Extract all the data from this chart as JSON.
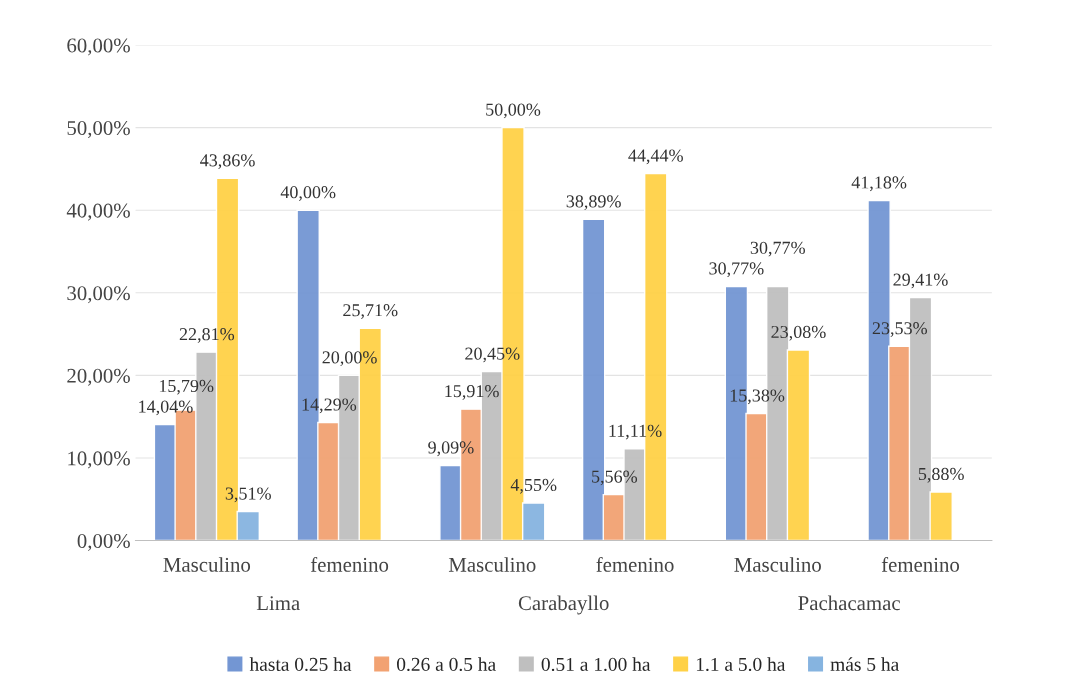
{
  "chart_data": {
    "type": "bar",
    "categories": [
      "Masculino",
      "femenino",
      "Masculino",
      "femenino",
      "Masculino",
      "femenino"
    ],
    "annotations": [
      "Lima",
      "Carabayllo",
      "Pachacamac"
    ],
    "series": [
      {
        "name": "hasta 0.25 ha",
        "color": "#7396d3",
        "values": [
          14.04,
          40.0,
          9.09,
          38.89,
          30.77,
          41.18
        ],
        "value_labels": [
          "14,04%",
          "40,00%",
          "9,09%",
          "38,89%",
          "30,77%",
          "41,18%"
        ]
      },
      {
        "name": "0.26 a 0.5 ha",
        "color": "#f2a272",
        "values": [
          15.79,
          14.29,
          15.91,
          5.56,
          15.38,
          23.53
        ],
        "value_labels": [
          "15,79%",
          "14,29%",
          "15,91%",
          "5,56%",
          "15,38%",
          "23,53%"
        ]
      },
      {
        "name": "0.51 a 1.00 ha",
        "color": "#bfbfbf",
        "values": [
          22.81,
          20.0,
          20.45,
          11.11,
          30.77,
          29.41
        ],
        "value_labels": [
          "22,81%",
          "20,00%",
          "20,45%",
          "11,11%",
          "30,77%",
          "29,41%"
        ]
      },
      {
        "name": "1.1 a 5.0 ha",
        "color": "#ffd147",
        "values": [
          43.86,
          25.71,
          50.0,
          44.44,
          23.08,
          5.88
        ],
        "value_labels": [
          "43,86%",
          "25,71%",
          "50,00%",
          "44,44%",
          "23,08%",
          "5,88%"
        ]
      },
      {
        "name": "más 5 ha",
        "color": "#86b4e0",
        "values": [
          3.51,
          null,
          4.55,
          null,
          null,
          null
        ],
        "value_labels": [
          "3,51%",
          null,
          "4,55%",
          null,
          null,
          null
        ]
      }
    ],
    "ylim": [
      0,
      60
    ],
    "yticks": [
      {
        "value": 0,
        "label": "0,00%"
      },
      {
        "value": 10,
        "label": "10,00%"
      },
      {
        "value": 20,
        "label": "20,00%"
      },
      {
        "value": 30,
        "label": "30,00%"
      },
      {
        "value": 40,
        "label": "40,00%"
      },
      {
        "value": 50,
        "label": "50,00%"
      },
      {
        "value": 60,
        "label": "60,00%"
      }
    ],
    "grid": "y",
    "legend": "bottom"
  }
}
